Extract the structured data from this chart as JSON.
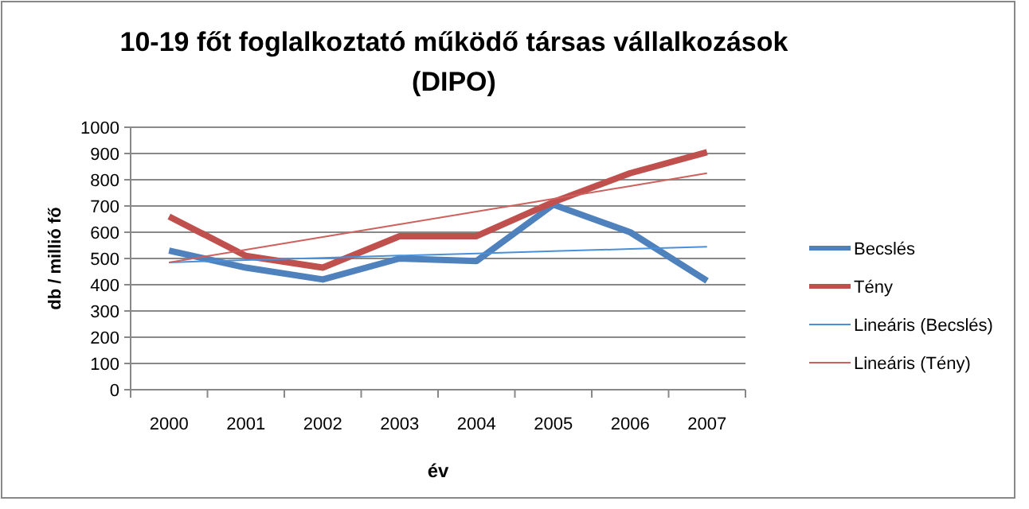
{
  "chart_data": {
    "type": "line",
    "title": "10-19 főt foglalkoztató működő társas vállalkozások (DIPO)",
    "xlabel": "év",
    "ylabel": "db / millió fő",
    "categories": [
      "2000",
      "2001",
      "2002",
      "2003",
      "2004",
      "2005",
      "2006",
      "2007"
    ],
    "series": [
      {
        "name": "Becslés",
        "color": "#4f81bd",
        "values": [
          530,
          465,
          420,
          500,
          490,
          705,
          600,
          415
        ]
      },
      {
        "name": "Tény",
        "color": "#c0504d",
        "values": [
          660,
          510,
          465,
          585,
          585,
          715,
          825,
          905
        ]
      },
      {
        "name": "Lineáris (Becslés)",
        "color": "#4a90d9",
        "values": [
          485,
          494,
          502,
          511,
          519,
          528,
          536,
          545
        ]
      },
      {
        "name": "Lineáris (Tény)",
        "color": "#d0605d",
        "values": [
          485,
          533,
          582,
          630,
          679,
          727,
          776,
          825
        ]
      }
    ],
    "ylim": [
      0,
      1000
    ],
    "yticks": [
      0,
      100,
      200,
      300,
      400,
      500,
      600,
      700,
      800,
      900,
      1000
    ],
    "grid": "y",
    "legend": "right",
    "marker": "none",
    "line_style": "solid"
  }
}
